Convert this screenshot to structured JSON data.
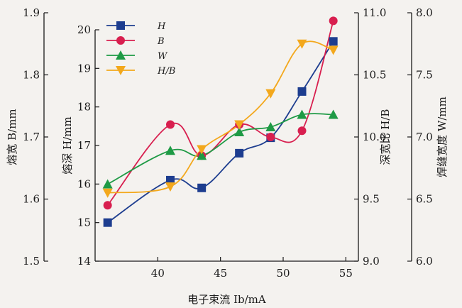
{
  "chart_data": {
    "type": "line",
    "xlabel": "电子束流 Ib/mA",
    "xlim": [
      35,
      56
    ],
    "x_ticks": [
      "40",
      "45",
      "50",
      "55"
    ],
    "axes": {
      "B": {
        "label": "熔宽 B/mm",
        "range": [
          1.5,
          1.9
        ],
        "ticks": [
          "1.5",
          "1.6",
          "1.7",
          "1.8",
          "1.9"
        ]
      },
      "H": {
        "label": "熔深 H/mm",
        "range": [
          14,
          20
        ],
        "ticks": [
          "14",
          "15",
          "16",
          "17",
          "18",
          "19",
          "20"
        ]
      },
      "HB": {
        "label": "深宽比 H/B",
        "range": [
          9.0,
          11.0
        ],
        "ticks": [
          "9.0",
          "9.5",
          "10.0",
          "10.5",
          "11.0"
        ]
      },
      "W": {
        "label": "焊缝宽度 W/mm",
        "range": [
          6.0,
          8.0
        ],
        "ticks": [
          "6.0",
          "6.5",
          "7.0",
          "7.5",
          "8.0"
        ]
      }
    },
    "legend_position": "top-left",
    "series": [
      {
        "name": "H",
        "axis": "H",
        "color": "#1d3d8f",
        "marker": "square",
        "x": [
          36,
          41,
          43.5,
          46.5,
          49,
          51.5,
          54
        ],
        "y": [
          15.0,
          16.1,
          15.9,
          16.8,
          17.2,
          18.4,
          19.7
        ]
      },
      {
        "name": "B",
        "axis": "B",
        "color": "#d81f4f",
        "marker": "circle",
        "x": [
          36,
          41,
          43.5,
          46.5,
          49,
          51.5,
          54
        ],
        "y": [
          1.59,
          1.72,
          1.67,
          1.72,
          1.7,
          1.71,
          1.887
        ]
      },
      {
        "name": "W",
        "axis": "W",
        "color": "#1e9a45",
        "marker": "triangle-up",
        "x": [
          36,
          41,
          43.5,
          46.5,
          49,
          51.5,
          54
        ],
        "y": [
          6.62,
          6.89,
          6.85,
          7.04,
          7.08,
          7.18,
          7.18
        ]
      },
      {
        "name": "H/B",
        "axis": "HB",
        "color": "#f3a81c",
        "marker": "triangle-down",
        "x": [
          36,
          41,
          43.5,
          46.5,
          49,
          51.5,
          54
        ],
        "y": [
          9.55,
          9.6,
          9.9,
          10.1,
          10.35,
          10.75,
          10.7
        ]
      }
    ]
  }
}
